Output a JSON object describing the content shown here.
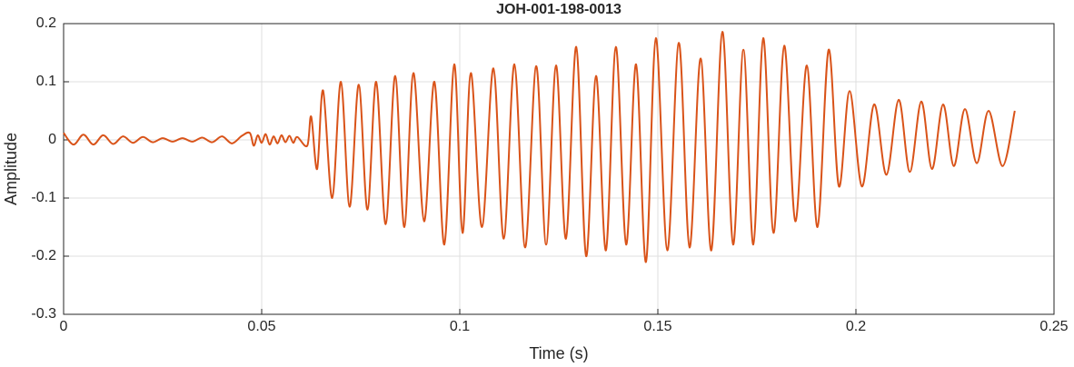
{
  "chart_data": {
    "type": "line",
    "title": "JOH-001-198-0013",
    "xlabel": "Time (s)",
    "ylabel": "Amplitude",
    "xlim": [
      0,
      0.25
    ],
    "xticks": [
      0,
      0.05,
      0.1,
      0.15,
      0.2,
      0.25
    ],
    "ylim": [
      -0.3,
      0.2
    ],
    "yticks": [
      -0.3,
      -0.2,
      -0.1,
      0,
      0.1,
      0.2
    ],
    "grid": true,
    "series": [
      {
        "name": "Amplitude",
        "color": "#d95319",
        "x": [
          0,
          0.0025,
          0.005,
          0.0075,
          0.01,
          0.0125,
          0.015,
          0.0175,
          0.02,
          0.0225,
          0.025,
          0.0275,
          0.03,
          0.0325,
          0.035,
          0.0375,
          0.04,
          0.0425,
          0.045,
          0.047,
          0.048,
          0.049,
          0.05,
          0.051,
          0.052,
          0.053,
          0.054,
          0.055,
          0.056,
          0.057,
          0.058,
          0.059,
          0.0615,
          0.0625,
          0.064,
          0.0655,
          0.0678,
          0.07,
          0.0722,
          0.0745,
          0.0767,
          0.0789,
          0.0813,
          0.0837,
          0.086,
          0.0883,
          0.091,
          0.0936,
          0.0961,
          0.0986,
          0.1007,
          0.1028,
          0.1056,
          0.1085,
          0.1111,
          0.1138,
          0.1165,
          0.1193,
          0.1218,
          0.1243,
          0.1268,
          0.1294,
          0.1319,
          0.1344,
          0.1369,
          0.1394,
          0.142,
          0.1445,
          0.147,
          0.1495,
          0.1524,
          0.1553,
          0.158,
          0.1608,
          0.1635,
          0.1663,
          0.169,
          0.1716,
          0.1741,
          0.1766,
          0.1792,
          0.1819,
          0.1847,
          0.1876,
          0.1903,
          0.1931,
          0.1957,
          0.1984,
          0.2015,
          0.2046,
          0.2077,
          0.2108,
          0.2136,
          0.2165,
          0.2192,
          0.222,
          0.2247,
          0.2275,
          0.2305,
          0.2335,
          0.237,
          0.2401
        ],
        "values": [
          0.012,
          -0.008,
          0.009,
          -0.008,
          0.008,
          -0.007,
          0.006,
          -0.005,
          0.005,
          -0.004,
          0.003,
          -0.003,
          0.003,
          -0.003,
          0.004,
          -0.004,
          0.006,
          -0.006,
          0.007,
          0.012,
          -0.01,
          0.008,
          -0.005,
          0.01,
          -0.008,
          0.006,
          -0.006,
          0.008,
          -0.004,
          0.007,
          -0.005,
          0.005,
          -0.01,
          0.04,
          -0.05,
          0.085,
          -0.1,
          0.1,
          -0.115,
          0.095,
          -0.12,
          0.1,
          -0.145,
          0.11,
          -0.15,
          0.115,
          -0.14,
          0.1,
          -0.18,
          0.13,
          -0.16,
          0.115,
          -0.15,
          0.123,
          -0.17,
          0.13,
          -0.185,
          0.127,
          -0.18,
          0.128,
          -0.17,
          0.16,
          -0.2,
          0.11,
          -0.19,
          0.16,
          -0.18,
          0.13,
          -0.21,
          0.175,
          -0.19,
          0.167,
          -0.185,
          0.14,
          -0.19,
          0.186,
          -0.18,
          0.155,
          -0.18,
          0.175,
          -0.16,
          0.162,
          -0.14,
          0.128,
          -0.15,
          0.155,
          -0.08,
          0.084,
          -0.08,
          0.061,
          -0.06,
          0.069,
          -0.055,
          0.066,
          -0.05,
          0.061,
          -0.045,
          0.053,
          -0.04,
          0.05,
          -0.045,
          0.05
        ]
      }
    ]
  }
}
